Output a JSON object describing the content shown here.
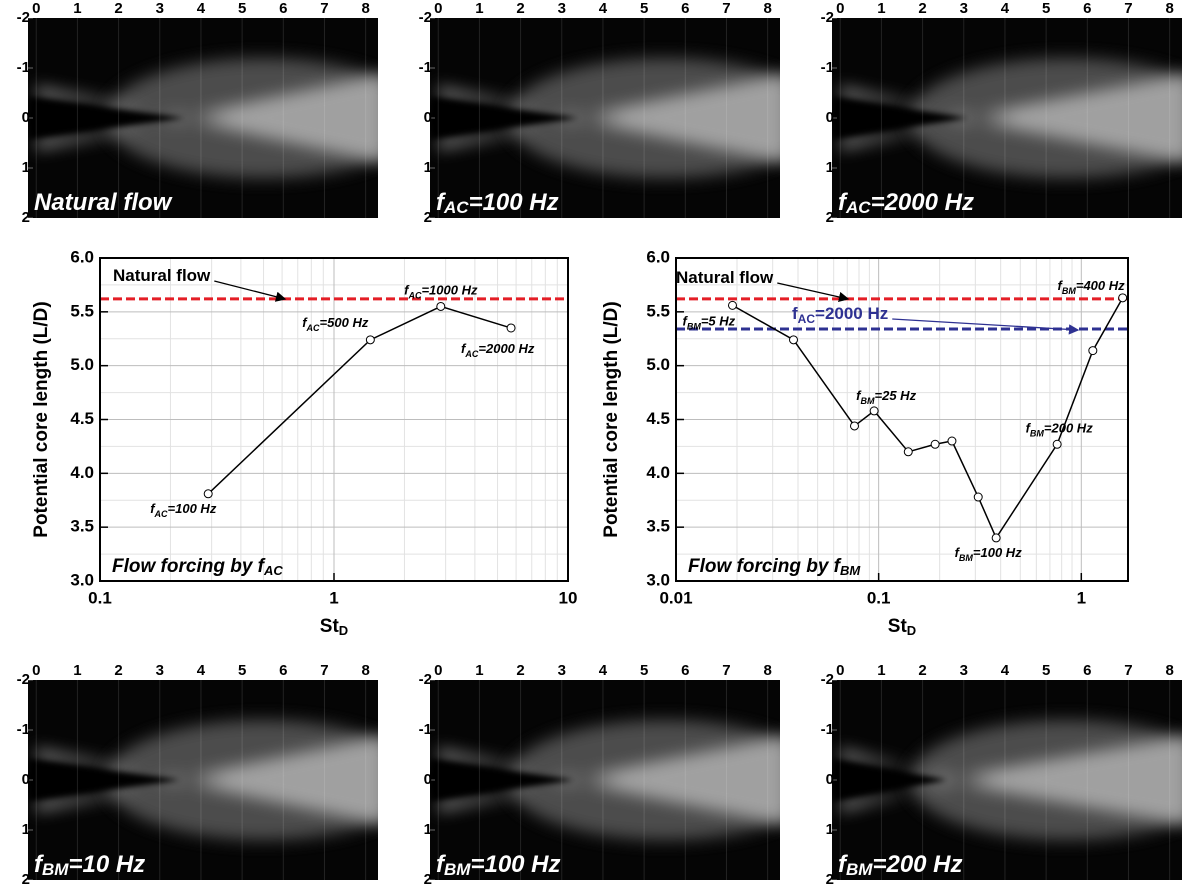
{
  "panels": [
    {
      "label": [
        "Natural flow"
      ],
      "xticks": [
        0,
        1,
        2,
        3,
        4,
        5,
        6,
        7,
        8
      ],
      "yticks": [
        -2,
        -1,
        0,
        1,
        2
      ],
      "xlim": [
        -0.2,
        8.3
      ],
      "ylim": [
        -2,
        2
      ]
    },
    {
      "label": [
        "f",
        "AC",
        "=100 Hz"
      ],
      "xticks": [
        0,
        1,
        2,
        3,
        4,
        5,
        6,
        7,
        8
      ],
      "yticks": [
        -2,
        -1,
        0,
        1,
        2
      ],
      "xlim": [
        -0.2,
        8.3
      ],
      "ylim": [
        -2,
        2
      ]
    },
    {
      "label": [
        "f",
        "AC",
        "=2000 Hz"
      ],
      "xticks": [
        0,
        1,
        2,
        3,
        4,
        5,
        6,
        7,
        8
      ],
      "yticks": [
        -2,
        -1,
        0,
        1,
        2
      ],
      "xlim": [
        -0.2,
        8.3
      ],
      "ylim": [
        -2,
        2
      ]
    },
    {
      "label": [
        "f",
        "BM",
        "=10 Hz"
      ],
      "xticks": [
        0,
        1,
        2,
        3,
        4,
        5,
        6,
        7,
        8
      ],
      "yticks": [
        -2,
        -1,
        0,
        1,
        2
      ],
      "xlim": [
        -0.2,
        8.3
      ],
      "ylim": [
        -2,
        2
      ]
    },
    {
      "label": [
        "f",
        "BM",
        "=100 Hz"
      ],
      "xticks": [
        0,
        1,
        2,
        3,
        4,
        5,
        6,
        7,
        8
      ],
      "yticks": [
        -2,
        -1,
        0,
        1,
        2
      ],
      "xlim": [
        -0.2,
        8.3
      ],
      "ylim": [
        -2,
        2
      ]
    },
    {
      "label": [
        "f",
        "BM",
        "=200 Hz"
      ],
      "xticks": [
        0,
        1,
        2,
        3,
        4,
        5,
        6,
        7,
        8
      ],
      "yticks": [
        -2,
        -1,
        0,
        1,
        2
      ],
      "xlim": [
        -0.2,
        8.3
      ],
      "ylim": [
        -2,
        2
      ]
    }
  ],
  "chart_data": [
    {
      "type": "line",
      "y_label": "Potential core length (L/D)",
      "x_label": [
        "St",
        "D"
      ],
      "inset_label": [
        "Flow forcing by f",
        "AC"
      ],
      "xscale": "log",
      "xlim": [
        0.1,
        10
      ],
      "xticks": [
        0.1,
        1,
        10
      ],
      "ylim": [
        3,
        6
      ],
      "yticks": [
        {
          "value": 3,
          "label": "3.0"
        },
        {
          "value": 3.5,
          "label": "3.5"
        },
        {
          "value": 4,
          "label": "4.0"
        },
        {
          "value": 4.5,
          "label": "4.5"
        },
        {
          "value": 5,
          "label": "5.0"
        },
        {
          "value": 5.5,
          "label": "5.5"
        },
        {
          "value": 6,
          "label": "6.0"
        }
      ],
      "grid": true,
      "series": [
        {
          "color": "#000000",
          "x": [
            0.29,
            1.43,
            2.86,
            5.71
          ],
          "values": [
            3.81,
            5.24,
            5.55,
            5.35
          ],
          "point_labels": [
            [
              "f",
              "AC",
              "=100 Hz"
            ],
            [
              "f",
              "AC",
              "=500 Hz"
            ],
            [
              "f",
              "AC",
              "=1000 Hz"
            ],
            [
              "f",
              "AC",
              "=2000 Hz"
            ]
          ]
        }
      ],
      "reference_lines": [
        {
          "label": [
            "Natural flow"
          ],
          "value": 5.62,
          "color": "#e41e26",
          "label_color": "#000000"
        }
      ]
    },
    {
      "type": "line",
      "y_label": "Potential core length (L/D)",
      "x_label": [
        "St",
        "D"
      ],
      "inset_label": [
        "Flow forcing by f",
        "BM"
      ],
      "xscale": "log",
      "xlim": [
        0.01,
        1.7
      ],
      "xticks": [
        0.01,
        0.1,
        1
      ],
      "ylim": [
        3,
        6
      ],
      "yticks": [
        {
          "value": 3,
          "label": "3.0"
        },
        {
          "value": 3.5,
          "label": "3.5"
        },
        {
          "value": 4,
          "label": "4.0"
        },
        {
          "value": 4.5,
          "label": "4.5"
        },
        {
          "value": 5,
          "label": "5.0"
        },
        {
          "value": 5.5,
          "label": "5.5"
        },
        {
          "value": 6,
          "label": "6.0"
        }
      ],
      "grid": true,
      "series": [
        {
          "color": "#000000",
          "x": [
            0.019,
            0.038,
            0.076,
            0.095,
            0.14,
            0.19,
            0.23,
            0.31,
            0.38,
            0.76,
            1.14,
            1.6
          ],
          "values": [
            5.56,
            5.24,
            4.44,
            4.58,
            4.2,
            4.27,
            4.3,
            3.78,
            3.4,
            4.27,
            5.14,
            5.63
          ],
          "point_labels": [
            [
              "f",
              "BM",
              "=5 Hz"
            ],
            null,
            null,
            [
              "f",
              "BM",
              "=25 Hz"
            ],
            null,
            null,
            null,
            null,
            [
              "f",
              "BM",
              "=100 Hz"
            ],
            [
              "f",
              "BM",
              "=200 Hz"
            ],
            null,
            [
              "f",
              "BM",
              "=400 Hz"
            ]
          ]
        }
      ],
      "reference_lines": [
        {
          "label": [
            "Natural flow"
          ],
          "value": 5.62,
          "color": "#e41e26",
          "label_color": "#000000"
        },
        {
          "label": [
            "f",
            "AC",
            "=2000 Hz"
          ],
          "value": 5.34,
          "color": "#2e3192",
          "label_color": "#2e3192"
        }
      ]
    }
  ]
}
